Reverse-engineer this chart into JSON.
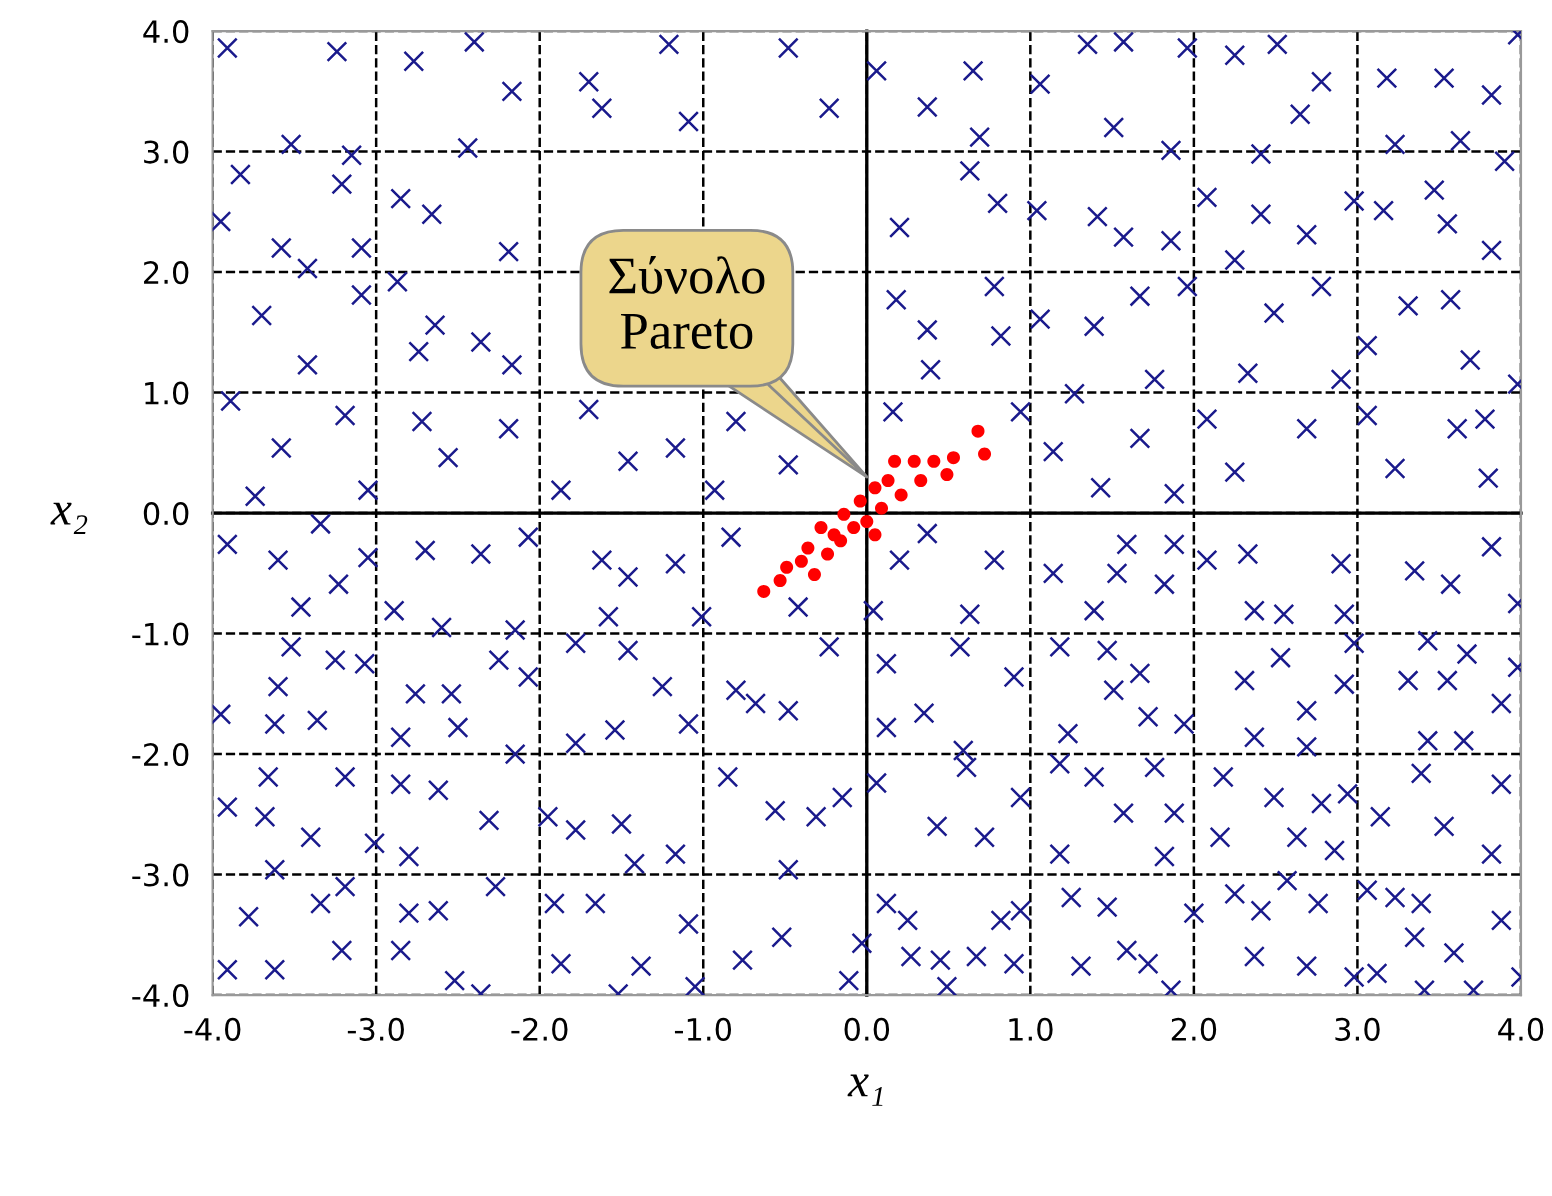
{
  "chart_data": {
    "type": "scatter",
    "xlabel": "x₁",
    "ylabel": "x₂",
    "xlim": [
      -4,
      4
    ],
    "ylim": [
      -4,
      4
    ],
    "xticks": [
      {
        "value": -4,
        "label": "-4.0"
      },
      {
        "value": -3,
        "label": "-3.0"
      },
      {
        "value": -2,
        "label": "-2.0"
      },
      {
        "value": -1,
        "label": "-1.0"
      },
      {
        "value": 0,
        "label": "0.0"
      },
      {
        "value": 1,
        "label": "1.0"
      },
      {
        "value": 2,
        "label": "2.0"
      },
      {
        "value": 3,
        "label": "3.0"
      },
      {
        "value": 4,
        "label": "4.0"
      }
    ],
    "yticks": [
      {
        "value": -4,
        "label": "-4.0"
      },
      {
        "value": -3,
        "label": "-3.0"
      },
      {
        "value": -2,
        "label": "-2.0"
      },
      {
        "value": -1,
        "label": "-1.0"
      },
      {
        "value": 0,
        "label": "0.0"
      },
      {
        "value": 1,
        "label": "1.0"
      },
      {
        "value": 2,
        "label": "2.0"
      },
      {
        "value": 3,
        "label": "3.0"
      },
      {
        "value": 4,
        "label": "4.0"
      }
    ],
    "grid": true,
    "line_style": "dashed",
    "legend": false,
    "annotations": [
      {
        "text": "Σύνολο\nPareto",
        "x": 0.0,
        "y": 0.3
      }
    ],
    "series": [
      {
        "color": "#1a1a8c",
        "marker": "cross",
        "x": [
          -3.91,
          -3.24,
          -2.77,
          -2.4,
          -2.17,
          -1.7,
          -1.21,
          -1.09,
          -0.48,
          -0.23,
          -3.52,
          -2.44,
          -3.15,
          -3.83,
          -2.66,
          -3.21,
          -2.85,
          -3.95,
          -3.58,
          -3.09,
          -2.19,
          -3.42,
          -3.7,
          -2.87,
          -3.09,
          -2.64,
          -2.36,
          -2.17,
          -2.74,
          -3.42,
          -3.89,
          -3.19,
          -2.72,
          -2.19,
          -1.7,
          -3.58,
          -2.56,
          -1.46,
          -1.17,
          -0.48,
          -3.74,
          -3.05,
          -1.87,
          -0.93,
          -0.8,
          -1.62,
          0.06,
          0.65,
          0.37,
          0.69,
          1.35,
          1.57,
          1.96,
          2.25,
          2.51,
          2.78,
          3.18,
          3.53,
          3.98,
          3.82,
          1.06,
          1.51,
          1.86,
          2.41,
          2.65,
          3.23,
          3.63,
          3.9,
          0.2,
          0.63,
          0.8,
          1.04,
          1.41,
          1.57,
          1.86,
          2.08,
          2.41,
          2.69,
          2.98,
          3.16,
          3.47,
          3.55,
          3.82,
          0.18,
          0.37,
          0.78,
          1.06,
          1.39,
          1.67,
          1.96,
          2.25,
          2.49,
          2.78,
          3.06,
          3.31,
          3.57,
          3.69,
          3.98,
          0.39,
          0.82,
          1.27,
          1.76,
          2.33,
          2.9,
          0.16,
          0.94,
          1.14,
          1.67,
          2.08,
          2.25,
          2.69,
          3.06,
          3.23,
          3.61,
          3.78,
          3.8,
          1.43,
          1.88,
          -3.91,
          -3.6,
          -3.23,
          -3.05,
          -3.34,
          -2.7,
          -2.36,
          -2.07,
          -1.62,
          -1.46,
          -1.17,
          -0.83,
          -3.46,
          -2.89,
          -2.6,
          -2.15,
          -1.58,
          -1.01,
          -0.42,
          -3.52,
          -3.25,
          -3.07,
          -3.6,
          -2.76,
          -2.54,
          -2.25,
          -2.07,
          -1.78,
          -1.46,
          -1.25,
          -1.09,
          -0.8,
          -0.68,
          -0.48,
          -0.23,
          -3.95,
          -3.62,
          -3.36,
          -2.85,
          -2.5,
          -2.15,
          -1.78,
          -1.54,
          -3.66,
          -3.19,
          -2.85,
          -2.62,
          -2.31,
          -3.91,
          -3.68,
          -3.4,
          -3.01,
          -2.8,
          -1.95,
          -1.78,
          -1.5,
          -1.42,
          -1.17,
          -0.85,
          -0.56,
          -0.31,
          -0.15,
          -0.48,
          -3.62,
          -3.19,
          -2.27,
          -3.78,
          -3.34,
          -2.8,
          -2.62,
          -1.91,
          -1.66,
          -1.09,
          -0.52,
          -0.03,
          -3.91,
          -3.62,
          -3.21,
          -2.85,
          -2.52,
          -2.36,
          -1.87,
          -1.38,
          -1.05,
          -0.76,
          -0.11,
          -1.52,
          0.2,
          0.37,
          0.63,
          0.78,
          1.14,
          1.39,
          1.53,
          1.59,
          1.88,
          1.82,
          2.08,
          2.33,
          2.37,
          2.55,
          2.9,
          2.92,
          3.35,
          3.57,
          3.82,
          3.98,
          0.04,
          0.12,
          0.57,
          0.9,
          0.35,
          0.12,
          0.59,
          1.18,
          1.47,
          1.67,
          1.51,
          1.72,
          1.94,
          1.23,
          2.31,
          2.53,
          2.69,
          2.37,
          2.98,
          2.92,
          2.69,
          3.31,
          3.43,
          3.55,
          3.67,
          3.98,
          3.88,
          3.43,
          3.65,
          0.06,
          0.43,
          0.72,
          0.94,
          0.61,
          1.18,
          1.39,
          1.57,
          1.88,
          1.76,
          1.18,
          1.82,
          2.16,
          2.18,
          2.49,
          2.78,
          2.94,
          2.86,
          2.63,
          3.14,
          3.39,
          3.53,
          3.88,
          3.82,
          0.12,
          0.25,
          0.82,
          0.94,
          1.25,
          1.47,
          2.0,
          2.25,
          2.41,
          2.57,
          2.76,
          3.06,
          3.23,
          3.39,
          3.35,
          3.88,
          0.27,
          0.45,
          0.67,
          0.9,
          0.49,
          1.31,
          1.59,
          1.72,
          1.86,
          2.37,
          2.69,
          2.98,
          3.12,
          3.41,
          3.59,
          3.71,
          4.0
        ],
        "values": [
          3.86,
          3.83,
          3.75,
          3.91,
          3.5,
          3.58,
          3.89,
          3.25,
          3.86,
          3.36,
          3.06,
          3.03,
          2.97,
          2.81,
          2.48,
          2.73,
          2.61,
          2.42,
          2.2,
          2.2,
          2.17,
          2.03,
          1.64,
          1.92,
          1.81,
          1.56,
          1.42,
          1.23,
          1.34,
          1.23,
          0.93,
          0.81,
          0.76,
          0.7,
          0.86,
          0.54,
          0.46,
          0.43,
          0.54,
          0.4,
          0.14,
          0.19,
          0.19,
          0.19,
          0.76,
          3.36,
          3.67,
          3.67,
          3.37,
          3.12,
          3.89,
          3.91,
          3.86,
          3.8,
          3.89,
          3.58,
          3.61,
          3.61,
          3.97,
          3.47,
          3.56,
          3.2,
          3.01,
          2.98,
          3.31,
          3.06,
          3.09,
          2.92,
          2.37,
          2.84,
          2.57,
          2.51,
          2.46,
          2.29,
          2.26,
          2.62,
          2.48,
          2.31,
          2.59,
          2.51,
          2.68,
          2.4,
          2.18,
          1.77,
          1.52,
          1.88,
          1.61,
          1.55,
          1.8,
          1.88,
          2.1,
          1.66,
          1.88,
          1.39,
          1.72,
          1.77,
          1.27,
          1.07,
          1.19,
          1.47,
          0.99,
          1.11,
          1.16,
          1.11,
          0.84,
          0.84,
          0.51,
          0.62,
          0.78,
          0.34,
          0.7,
          0.81,
          0.37,
          0.7,
          0.78,
          0.29,
          0.21,
          0.16,
          -0.26,
          -0.39,
          -0.59,
          -0.37,
          -0.09,
          -0.31,
          -0.34,
          -0.2,
          -0.39,
          -0.53,
          -0.42,
          -0.2,
          -0.78,
          -0.81,
          -0.95,
          -0.97,
          -0.86,
          -0.86,
          -0.78,
          -1.11,
          -1.22,
          -1.25,
          -1.44,
          -1.5,
          -1.5,
          -1.22,
          -1.36,
          -1.08,
          -1.14,
          -1.44,
          -1.75,
          -1.47,
          -1.58,
          -1.64,
          -1.11,
          -1.67,
          -1.75,
          -1.72,
          -1.86,
          -1.78,
          -2.0,
          -1.91,
          -1.8,
          -2.19,
          -2.19,
          -2.25,
          -2.3,
          -2.55,
          -2.44,
          -2.52,
          -2.69,
          -2.74,
          -2.85,
          -2.52,
          -2.63,
          -2.58,
          -2.91,
          -2.83,
          -2.19,
          -2.47,
          -2.52,
          -2.36,
          -2.96,
          -2.96,
          -3.1,
          -3.1,
          -3.35,
          -3.24,
          -3.32,
          -3.3,
          -3.24,
          -3.24,
          -3.41,
          -3.52,
          -3.57,
          -3.79,
          -3.79,
          -3.63,
          -3.63,
          -3.88,
          -3.99,
          -3.74,
          -3.76,
          -3.93,
          -3.71,
          -3.88,
          -3.99,
          -0.39,
          -0.17,
          -0.84,
          -0.39,
          -0.5,
          -0.81,
          -0.5,
          -0.26,
          -0.26,
          -0.59,
          -0.39,
          -0.34,
          -0.81,
          -0.84,
          -0.42,
          -0.84,
          -0.48,
          -0.59,
          -0.28,
          -0.75,
          -0.81,
          -1.25,
          -1.11,
          -1.36,
          -1.66,
          -1.78,
          -1.97,
          -1.11,
          -1.14,
          -1.33,
          -1.47,
          -1.69,
          -1.75,
          -1.83,
          -1.39,
          -1.2,
          -1.64,
          -1.86,
          -1.08,
          -1.42,
          -1.94,
          -1.39,
          -1.06,
          -1.39,
          -1.17,
          -1.28,
          -1.58,
          -1.89,
          -1.89,
          -2.24,
          -2.6,
          -2.69,
          -2.36,
          -2.11,
          -2.08,
          -2.19,
          -2.49,
          -2.49,
          -2.11,
          -2.83,
          -2.85,
          -2.69,
          -2.19,
          -2.36,
          -2.41,
          -2.33,
          -2.8,
          -2.69,
          -2.52,
          -2.16,
          -2.6,
          -2.25,
          -2.83,
          -3.24,
          -3.38,
          -3.38,
          -3.3,
          -3.19,
          -3.27,
          -3.32,
          -3.16,
          -3.3,
          -3.05,
          -3.24,
          -3.13,
          -3.19,
          -3.24,
          -3.52,
          -3.38,
          -3.68,
          -3.71,
          -3.68,
          -3.74,
          -3.93,
          -3.76,
          -3.63,
          -3.74,
          -3.96,
          -3.68,
          -3.76,
          -3.85,
          -3.82,
          -3.96,
          -3.65,
          -3.96,
          -3.85
        ]
      },
      {
        "color": "#ff0000",
        "marker": "circle",
        "x": [
          -0.63,
          -0.49,
          -0.32,
          -0.36,
          -0.2,
          -0.08,
          0.0,
          0.09,
          0.05,
          0.17,
          0.21,
          0.33,
          0.41,
          0.49,
          0.53,
          0.68,
          0.72,
          -0.14,
          -0.24,
          -0.4,
          -0.53,
          -0.04,
          0.13,
          0.29,
          -0.16,
          -0.28,
          0.05
        ],
        "values": [
          -0.65,
          -0.45,
          -0.51,
          -0.29,
          -0.18,
          -0.12,
          -0.07,
          0.04,
          0.21,
          0.43,
          0.15,
          0.27,
          0.43,
          0.32,
          0.46,
          0.68,
          0.49,
          -0.01,
          -0.34,
          -0.4,
          -0.56,
          0.1,
          0.27,
          0.43,
          -0.23,
          -0.12,
          -0.18
        ]
      }
    ]
  }
}
